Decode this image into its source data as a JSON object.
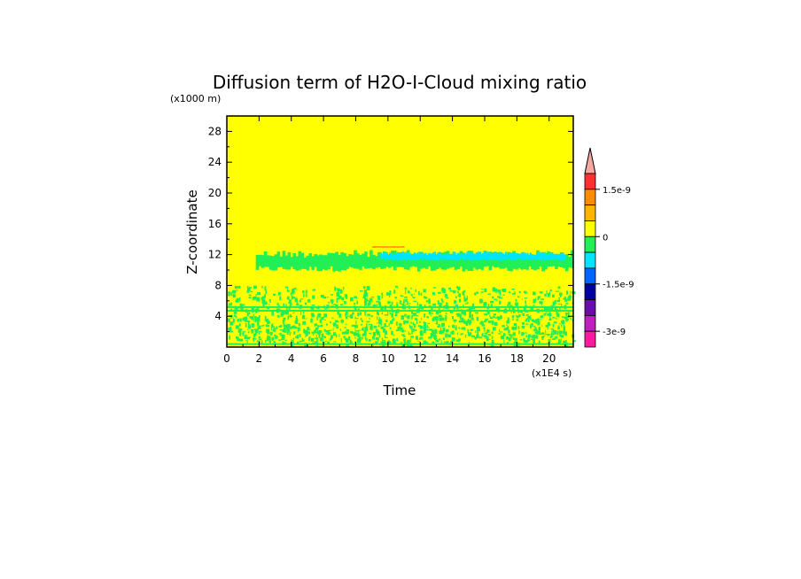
{
  "chart_data": {
    "type": "heatmap",
    "title": "Diffusion term of H2O-I-Cloud mixing ratio",
    "xlabel": "Time",
    "ylabel": "Z-coordinate",
    "x_unit": "(x1E4 s)",
    "y_unit": "(x1000 m)",
    "xlim": [
      0,
      21.5
    ],
    "ylim": [
      0,
      30
    ],
    "x_ticks": [
      0,
      2,
      4,
      6,
      8,
      10,
      12,
      14,
      16,
      18,
      20
    ],
    "y_ticks": [
      4,
      8,
      12,
      16,
      20,
      24,
      28
    ],
    "background_level": "0 to 5e-10",
    "colorbar": {
      "extend": "max",
      "labels": [
        {
          "text": "1.5e-9",
          "value": 1.5e-09
        },
        {
          "text": "0",
          "value": 0
        },
        {
          "text": "-1.5e-9",
          "value": -1.5e-09
        },
        {
          "text": "-3e-9",
          "value": -3e-09
        }
      ],
      "levels": [
        {
          "lower": 2e-09,
          "upper": null,
          "color": "#f4a9a0"
        },
        {
          "lower": 1.5e-09,
          "upper": 2e-09,
          "color": "#ff3030"
        },
        {
          "lower": 1e-09,
          "upper": 1.5e-09,
          "color": "#ff8c00"
        },
        {
          "lower": 5e-10,
          "upper": 1e-09,
          "color": "#ffb400"
        },
        {
          "lower": 0,
          "upper": 5e-10,
          "color": "#ffff00"
        },
        {
          "lower": -5e-10,
          "upper": 0,
          "color": "#22ee55"
        },
        {
          "lower": -1e-09,
          "upper": -5e-10,
          "color": "#00e5ff"
        },
        {
          "lower": -1.5e-09,
          "upper": -1e-09,
          "color": "#0066ff"
        },
        {
          "lower": -2e-09,
          "upper": -1.5e-09,
          "color": "#0000a0"
        },
        {
          "lower": -2.5e-09,
          "upper": -2e-09,
          "color": "#6a0dad"
        },
        {
          "lower": -3e-09,
          "upper": -2.5e-09,
          "color": "#c020c0"
        },
        {
          "lower": null,
          "upper": -3e-09,
          "color": "#ff1aa0"
        }
      ]
    },
    "features": [
      {
        "level_color": "#22ee55",
        "x_range": [
          1.8,
          21.5
        ],
        "z_range": [
          9.8,
          12.6
        ]
      },
      {
        "level_color": "#00e5ff",
        "x_range": [
          9.5,
          21.0
        ],
        "z_range": [
          11.2,
          12.4
        ]
      },
      {
        "level_color": "#ff8c00",
        "x_range": [
          9.0,
          11.0
        ],
        "z_range": [
          12.9,
          13.1
        ]
      },
      {
        "level_color": "#22ee55",
        "x_range": [
          0,
          21.5
        ],
        "z_range": [
          0.5,
          8.0
        ],
        "pattern": "speckled"
      },
      {
        "level_color": "#22ee55",
        "x_range": [
          0,
          21.5
        ],
        "z_range": [
          4.6,
          5.3
        ],
        "pattern": "horizontal band"
      }
    ]
  }
}
